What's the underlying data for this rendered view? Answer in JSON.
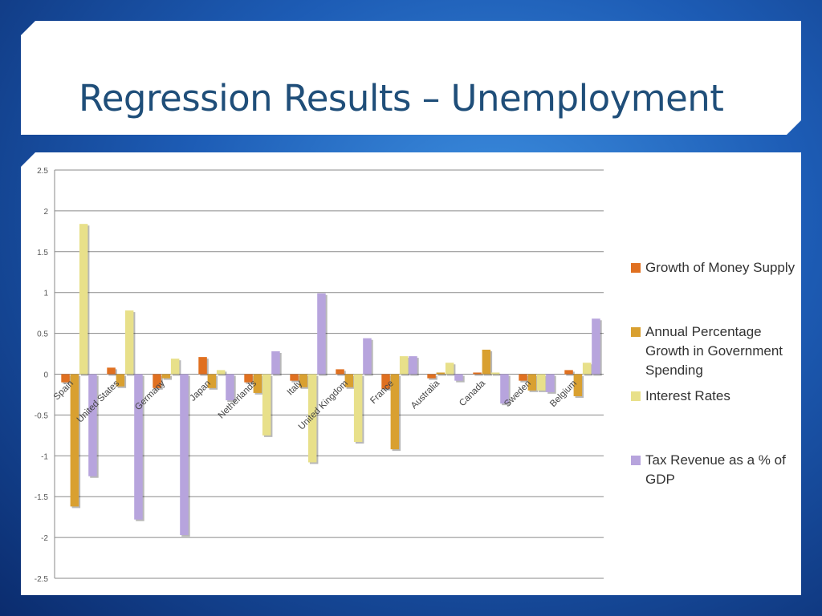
{
  "slide": {
    "title": "Regression Results – Unemployment"
  },
  "chart_data": {
    "type": "bar",
    "title": "",
    "xlabel": "",
    "ylabel": "",
    "ylim": [
      -2.5,
      2.5
    ],
    "yticks": [
      "2.5",
      "2",
      "1.5",
      "1",
      "0.5",
      "0",
      "-0.5",
      "-1",
      "-1.5",
      "-2",
      "-2.5"
    ],
    "grid": true,
    "legend_position": "right",
    "categories": [
      "Spain",
      "United States",
      "Germany",
      "Japan",
      "Netherlands",
      "Italy",
      "United Kingdom",
      "France",
      "Australia",
      "Canada",
      "Sweden",
      "Belgium"
    ],
    "series": [
      {
        "name": "Growth of Money Supply",
        "color": "#e07020",
        "values": [
          -0.1,
          0.08,
          -0.17,
          0.21,
          -0.1,
          -0.08,
          0.06,
          -0.18,
          -0.05,
          0.02,
          -0.08,
          0.05
        ]
      },
      {
        "name": "Annual Percentage Growth in Government Spending",
        "color": "#d9a030",
        "values": [
          -1.62,
          -0.15,
          -0.05,
          -0.17,
          -0.23,
          -0.16,
          -0.16,
          -0.92,
          0.02,
          0.3,
          -0.2,
          -0.27
        ]
      },
      {
        "name": "Interest Rates",
        "color": "#e8e08a",
        "values": [
          1.84,
          0.78,
          0.19,
          0.05,
          -0.75,
          -1.08,
          -0.83,
          0.22,
          0.14,
          0.02,
          -0.2,
          0.14
        ]
      },
      {
        "name": "Tax Revenue as a % of GDP",
        "color": "#b7a4dd",
        "values": [
          -1.25,
          -1.78,
          -1.97,
          -0.32,
          0.28,
          0.99,
          0.44,
          0.22,
          -0.08,
          -0.36,
          -0.22,
          0.68
        ]
      }
    ]
  }
}
